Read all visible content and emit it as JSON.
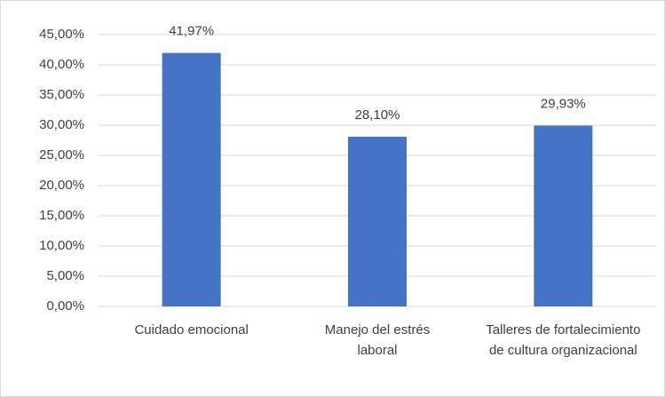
{
  "chart_data": {
    "type": "bar",
    "categories": [
      "Cuidado emocional",
      "Manejo del estrés laboral",
      "Talleres de fortalecimiento de cultura organizacional"
    ],
    "values": [
      41.97,
      28.1,
      29.93
    ],
    "value_labels": [
      "41,97%",
      "28,10%",
      "29,93%"
    ],
    "color": "#4472c4",
    "ylim": [
      0,
      45
    ],
    "yticks": [
      {
        "value": 0,
        "label": "0,00%"
      },
      {
        "value": 5,
        "label": "5,00%"
      },
      {
        "value": 10,
        "label": "10,00%"
      },
      {
        "value": 15,
        "label": "15,00%"
      },
      {
        "value": 20,
        "label": "20,00%"
      },
      {
        "value": 25,
        "label": "25,00%"
      },
      {
        "value": 30,
        "label": "30,00%"
      },
      {
        "value": 35,
        "label": "35,00%"
      },
      {
        "value": 40,
        "label": "40,00%"
      },
      {
        "value": 45,
        "label": "45,00%"
      }
    ],
    "grid": true
  }
}
